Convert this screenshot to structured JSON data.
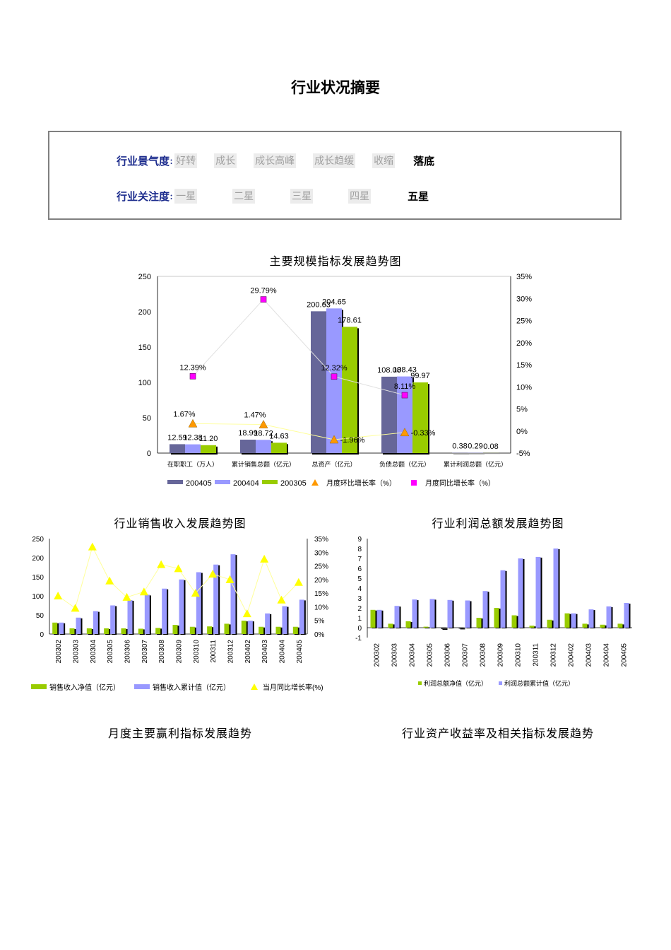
{
  "page": {
    "title": "行业状况摘要"
  },
  "summary": {
    "sentiment": {
      "label": "行业景气度",
      "colon": ":",
      "options": [
        "好转",
        "成长",
        "成长高峰",
        "成长趋缓",
        "收缩",
        "落底"
      ],
      "selected_index": 5
    },
    "attention": {
      "label": "行业关注度",
      "colon": ":",
      "options": [
        "一星",
        "二星",
        "三星",
        "四星",
        "五星"
      ],
      "selected_index": 4
    }
  },
  "colors": {
    "series_200405": "#666699",
    "series_200404": "#9999ff",
    "series_200305": "#99cc00",
    "mom_marker": "#ff9900",
    "yoy_marker": "#ff00ff",
    "yoy_line": "#ffff00"
  },
  "sections": {
    "monthly_profit": "月度主要赢利指标发展趋势",
    "asset_return": "行业资产收益率及相关指标发展趋势"
  },
  "chart_data": [
    {
      "id": "main",
      "type": "bar",
      "title": "主要规模指标发展趋势图",
      "categories": [
        "在职职工（万人）",
        "累计销售总额（亿元）",
        "总资产（亿元）",
        "负债总额（亿元）",
        "累计利润总额（亿元）"
      ],
      "series": [
        {
          "name": "200405",
          "values": [
            12.59,
            18.99,
            200.63,
            108.08,
            0.38
          ],
          "labels": [
            "12.59",
            "18.99",
            "200.63",
            "108.08",
            "0.38"
          ]
        },
        {
          "name": "200404",
          "values": [
            12.38,
            18.72,
            204.65,
            108.43,
            0.29
          ],
          "labels": [
            "12.38",
            "18.72",
            "204.65",
            "108.43",
            "0.29"
          ]
        },
        {
          "name": "200305",
          "values": [
            11.2,
            14.63,
            178.61,
            99.97,
            0.08
          ],
          "labels": [
            "11.20",
            "14.63",
            "178.61",
            "99.97",
            "0.08"
          ]
        }
      ],
      "lines": [
        {
          "name": "月度环比增长率（%）",
          "values": [
            1.67,
            1.47,
            -1.96,
            -0.33
          ],
          "labels": [
            "1.67%",
            "1.47%",
            "-1.96%",
            "-0.33%"
          ]
        },
        {
          "name": "月度同比增长率（%）",
          "values": [
            12.39,
            29.79,
            12.32,
            8.11
          ],
          "labels": [
            "12.39%",
            "29.79%",
            "12.32%",
            "8.11%"
          ]
        }
      ],
      "ylim": [
        0,
        250
      ],
      "yticks": [
        "0",
        "50",
        "100",
        "150",
        "200",
        "250"
      ],
      "y2lim": [
        -5,
        35
      ],
      "y2ticks": [
        "-5%",
        "0%",
        "5%",
        "10%",
        "15%",
        "20%",
        "25%",
        "30%",
        "35%"
      ],
      "legend": "bottom"
    },
    {
      "id": "sales",
      "type": "bar",
      "title": "行业销售收入发展趋势图",
      "categories": [
        "200302",
        "200303",
        "200304",
        "200305",
        "200306",
        "200307",
        "200308",
        "200309",
        "200310",
        "200311",
        "200312",
        "200402",
        "200403",
        "200404",
        "200405"
      ],
      "series": [
        {
          "name": "销售收入净值（亿元）",
          "values": [
            30,
            15,
            15,
            15,
            15,
            14,
            16,
            24,
            19,
            20,
            27,
            35,
            19,
            19,
            19
          ]
        },
        {
          "name": "销售收入累计值（亿元）",
          "values": [
            30,
            43,
            60,
            75,
            89,
            103,
            119,
            143,
            162,
            182,
            209,
            35,
            54,
            73,
            90
          ]
        }
      ],
      "lines": [
        {
          "name": "当月同比增长率(%)",
          "values": [
            14,
            9.5,
            32,
            19.5,
            13.5,
            15.5,
            25.5,
            24,
            15,
            22,
            20,
            7.5,
            27.5,
            12.5,
            19
          ]
        }
      ],
      "ylim": [
        0,
        250
      ],
      "yticks": [
        "0",
        "50",
        "100",
        "150",
        "200",
        "250"
      ],
      "y2lim": [
        0,
        35
      ],
      "y2ticks": [
        "0%",
        "5%",
        "10%",
        "15%",
        "20%",
        "25%",
        "30%",
        "35%"
      ],
      "legend": "bottom"
    },
    {
      "id": "profit",
      "type": "bar",
      "title": "行业利润总额发展趋势图",
      "categories": [
        "200302",
        "200303",
        "200304",
        "200305",
        "200306",
        "200307",
        "200308",
        "200309",
        "200310",
        "200311",
        "200312",
        "200402",
        "200403",
        "200404",
        "200405"
      ],
      "series": [
        {
          "name": "利润总额净值（亿元）",
          "values": [
            1.8,
            0.4,
            0.65,
            0.1,
            -0.15,
            -0.1,
            1.0,
            2.0,
            1.25,
            0.2,
            0.8,
            1.45,
            0.4,
            0.3,
            0.4
          ]
        },
        {
          "name": "利润总额累计值（亿元）",
          "values": [
            1.8,
            2.2,
            2.85,
            2.9,
            2.8,
            2.75,
            3.7,
            5.8,
            7.0,
            7.15,
            8.0,
            1.45,
            1.85,
            2.15,
            2.5
          ]
        }
      ],
      "ylim": [
        -1,
        9
      ],
      "yticks": [
        "-1",
        "0",
        "1",
        "2",
        "3",
        "4",
        "5",
        "6",
        "7",
        "8",
        "9"
      ],
      "legend": "bottom"
    }
  ]
}
